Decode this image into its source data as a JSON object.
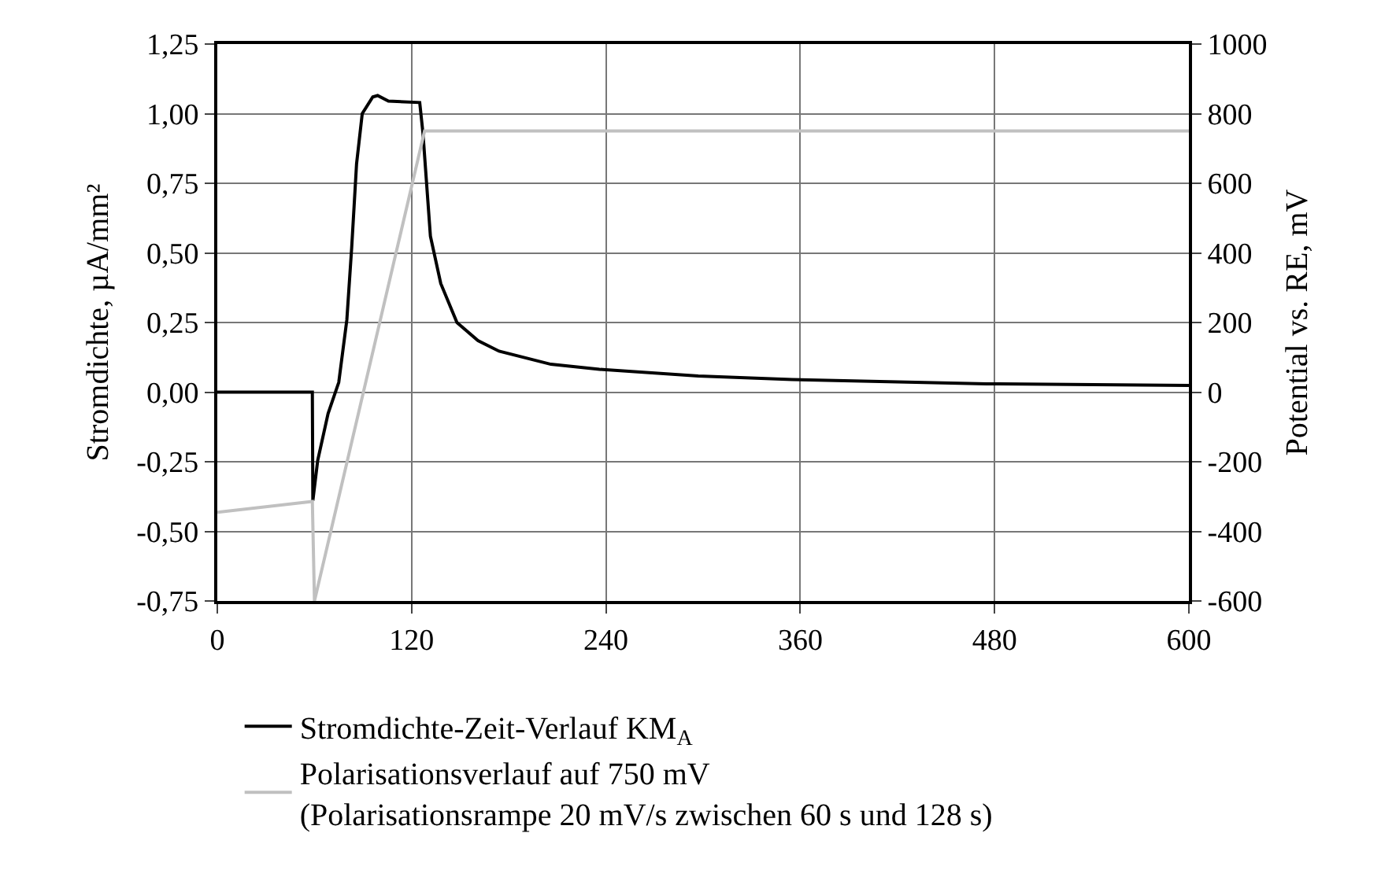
{
  "chart_data": {
    "type": "line",
    "ylabel": "Stromdichte, µA/mm²",
    "y2label": "Potential vs. RE, mV",
    "xlim": [
      0,
      600
    ],
    "xticks": [
      0,
      120,
      240,
      360,
      480,
      600
    ],
    "ylim": [
      -0.75,
      1.25
    ],
    "yticks": [
      {
        "value": -0.75,
        "label": "-0,75"
      },
      {
        "value": -0.5,
        "label": "-0,50"
      },
      {
        "value": -0.25,
        "label": "-0,25"
      },
      {
        "value": 0,
        "label": "0,00"
      },
      {
        "value": 0.25,
        "label": "0,25"
      },
      {
        "value": 0.5,
        "label": "0,50"
      },
      {
        "value": 0.75,
        "label": "0,75"
      },
      {
        "value": 1.0,
        "label": "1,00"
      },
      {
        "value": 1.25,
        "label": "1,25"
      }
    ],
    "y2lim": [
      -600,
      1000
    ],
    "y2ticks": [
      -600,
      -400,
      -200,
      0,
      200,
      400,
      600,
      800,
      1000
    ],
    "grid": true,
    "legend": "bottom",
    "marker": "none",
    "line_style": "solid",
    "series": [
      {
        "name": "Stromdichte-Zeit-Verlauf KM$_{A}$",
        "color": "#000000",
        "x": [
          0,
          58.7,
          59,
          62,
          68.4,
          75,
          80,
          83,
          86,
          89.5,
          96,
          99,
          105.7,
          125,
          127,
          131.6,
          138,
          148,
          161,
          174,
          206,
          236,
          297,
          355,
          475,
          600
        ],
        "values": [
          0,
          0,
          -0.39,
          -0.245,
          -0.077,
          0.035,
          0.26,
          0.52,
          0.82,
          1.0,
          1.06,
          1.065,
          1.045,
          1.04,
          0.93,
          0.56,
          0.39,
          0.25,
          0.185,
          0.147,
          0.1,
          0.082,
          0.058,
          0.045,
          0.03,
          0.024
        ]
      },
      {
        "name": "Polarisationsverlauf auf 750 mV\n(Polarisationsrampe 20 mV/s zwischen 60 s und 128 s)",
        "color": "#c0c0c0",
        "axis": "y2",
        "x": [
          0,
          58.7,
          60,
          128,
          600
        ],
        "values": [
          -345,
          -314,
          -600,
          750,
          750
        ]
      }
    ]
  }
}
